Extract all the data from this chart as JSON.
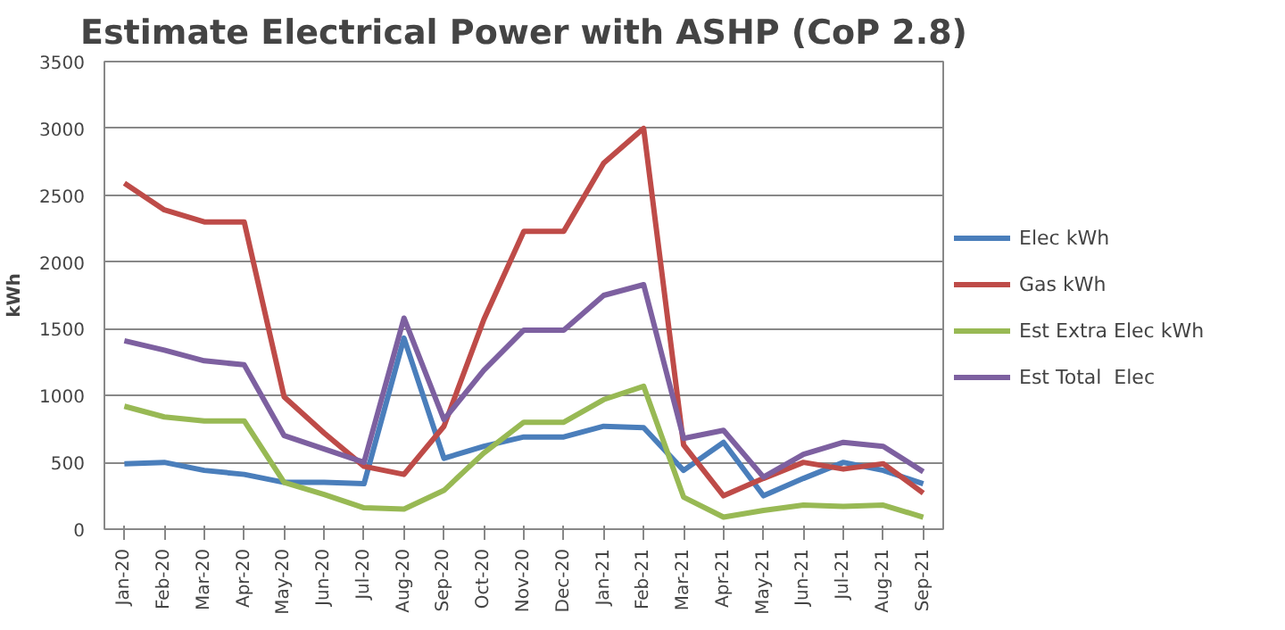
{
  "chart_data": {
    "type": "line",
    "title": "Estimate Electrical Power with ASHP (CoP 2.8)",
    "ylabel": "kWh",
    "categories": [
      "Jan-20",
      "Feb-20",
      "Mar-20",
      "Apr-20",
      "May-20",
      "Jun-20",
      "Jul-20",
      "Aug-20",
      "Sep-20",
      "Oct-20",
      "Nov-20",
      "Dec-20",
      "Jan-21",
      "Feb-21",
      "Mar-21",
      "Apr-21",
      "May-21",
      "Jun-21",
      "Jul-21",
      "Aug-21",
      "Sep-21"
    ],
    "series": [
      {
        "name": "Elec kWh",
        "color": "#4a7ebb",
        "values": [
          490,
          500,
          440,
          410,
          350,
          350,
          340,
          1430,
          530,
          620,
          690,
          690,
          770,
          760,
          440,
          650,
          250,
          380,
          500,
          440,
          340
        ]
      },
      {
        "name": "Gas kWh",
        "color": "#be4b48",
        "values": [
          2590,
          2390,
          2300,
          2300,
          990,
          720,
          470,
          410,
          770,
          1570,
          2230,
          2230,
          2740,
          3000,
          630,
          250,
          380,
          500,
          450,
          490,
          270
        ]
      },
      {
        "name": "Est Extra Elec kWh",
        "color": "#98b954",
        "values": [
          920,
          840,
          810,
          810,
          350,
          260,
          160,
          150,
          290,
          570,
          800,
          800,
          970,
          1070,
          240,
          90,
          140,
          180,
          170,
          180,
          90
        ]
      },
      {
        "name": "Est Total  Elec",
        "color": "#7d60a0",
        "values": [
          1410,
          1340,
          1260,
          1230,
          700,
          600,
          500,
          1580,
          820,
          1190,
          1490,
          1490,
          1750,
          1830,
          680,
          740,
          390,
          560,
          650,
          620,
          430
        ]
      }
    ],
    "ylim": [
      0,
      3500
    ],
    "yticks": [
      0,
      500,
      1000,
      1500,
      2000,
      2500,
      3000,
      3500
    ],
    "grid": "y",
    "legend": "right",
    "marker": "none",
    "line_style": "solid"
  }
}
